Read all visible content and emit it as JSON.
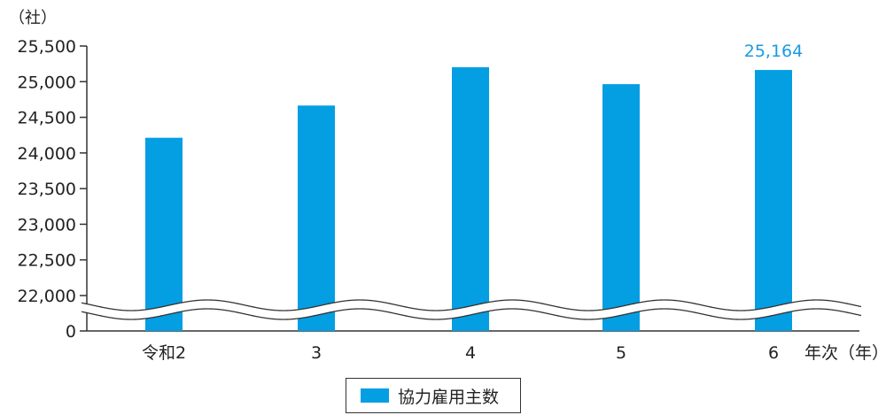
{
  "chart_data": {
    "type": "bar",
    "y_unit_label": "（社）",
    "x_unit_label": "年次（年）",
    "categories": [
      "令和2",
      "3",
      "4",
      "5",
      "6"
    ],
    "series": [
      {
        "name": "協力雇用主数",
        "values": [
          24213,
          24665,
          25202,
          24965,
          25164
        ]
      }
    ],
    "y_ticks": [
      "25,500",
      "25,000",
      "24,500",
      "24,000",
      "23,500",
      "23,000",
      "22,500",
      "22,000",
      "0"
    ],
    "y_tick_values": [
      25500,
      25000,
      24500,
      24000,
      23500,
      23000,
      22500,
      22000,
      0
    ],
    "ylim": [
      22000,
      25500
    ],
    "axis_break": true,
    "data_labels": [
      {
        "index": 4,
        "text": "25,164"
      }
    ],
    "bar_color": "#049ee3",
    "label_color": "#1a9be0",
    "grid": false
  }
}
